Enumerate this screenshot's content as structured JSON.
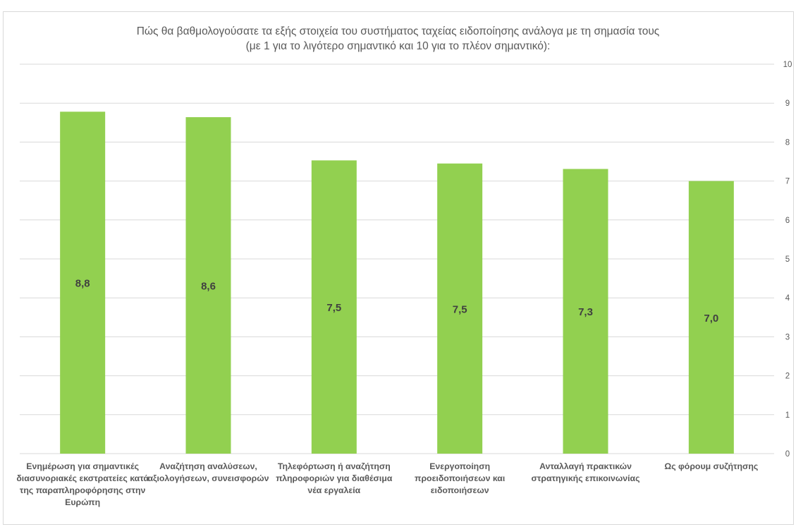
{
  "chart_data": {
    "type": "bar",
    "title": "Πώς θα βαθμολογούσατε τα εξής στοιχεία του συστήματος ταχείας ειδοποίησης ανάλογα με τη σημασία τους",
    "subtitle": "(με 1 για το λιγότερο σημαντικό και 10 για το πλέον σημαντικό):",
    "categories": [
      "Ενημέρωση για σημαντικές διασυνοριακές εκστρατείες κατά της παραπληροφόρησης στην Ευρώπη",
      "Αναζήτηση αναλύσεων, αξιολογήσεων, συνεισφορών",
      "Τηλεφόρτωση ή αναζήτηση πληροφοριών για διαθέσιμα νέα εργαλεία",
      "Ενεργοποίηση προειδοποιήσεων και ειδοποιήσεων",
      "Ανταλλαγή πρακτικών στρατηγικής επικοινωνίας",
      "Ως φόρουμ συζήτησης"
    ],
    "values": [
      8.78,
      8.64,
      7.53,
      7.45,
      7.31,
      7.0
    ],
    "data_labels": [
      "8,8",
      "8,6",
      "7,5",
      "7,5",
      "7,3",
      "7,0"
    ],
    "yaxis": {
      "position": "right",
      "ticks": [
        "0",
        "1",
        "2",
        "3",
        "4",
        "5",
        "6",
        "7",
        "8",
        "9",
        "10"
      ]
    },
    "ylim": [
      0,
      10
    ],
    "grid": true,
    "legend": "none",
    "colors": {
      "bar": "#92d050",
      "gridline": "#d9d9d9",
      "text": "#595959",
      "data_label": "#404040"
    }
  }
}
